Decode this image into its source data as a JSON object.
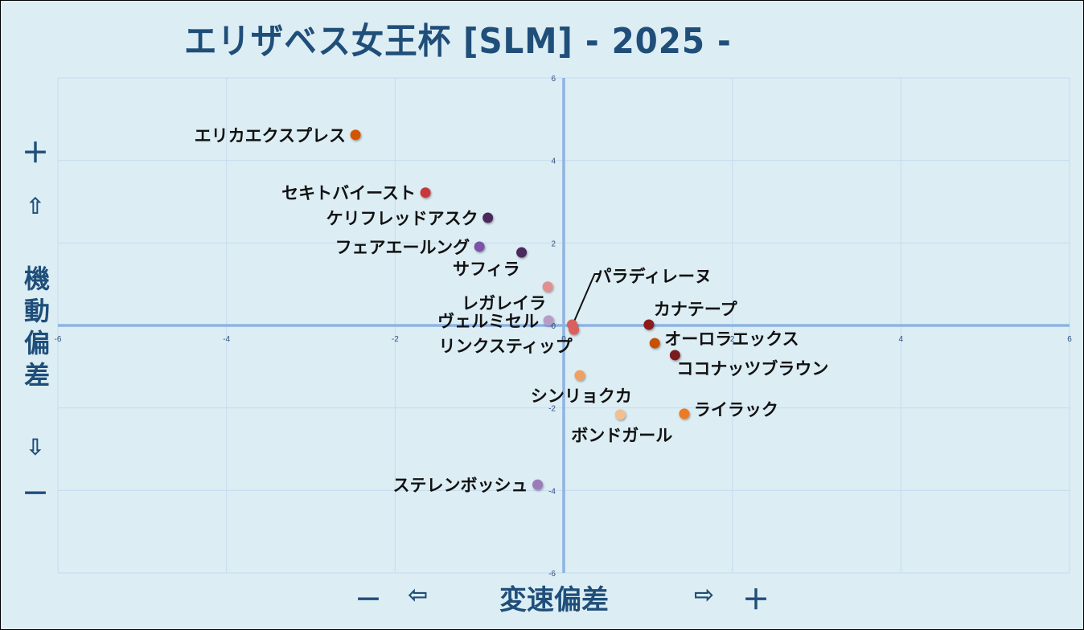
{
  "title": "エリザベス女王杯 [SLM]  - 2025 -",
  "y_axis": {
    "plus": "＋",
    "up_arrow": "⇧",
    "label_chars": [
      "機",
      "動",
      "偏",
      "差"
    ],
    "down_arrow": "⇩",
    "minus": "－"
  },
  "x_axis": {
    "minus": "－",
    "left_arrow": "⇦",
    "label": "変速偏差",
    "right_arrow": "⇨",
    "plus": "＋"
  },
  "colors": {
    "background": "#dcedf4",
    "title": "#1f4e79",
    "axis_line": "#8db3e2",
    "grid": "#c6dcef"
  },
  "chart_data": {
    "type": "scatter",
    "title": "エリザベス女王杯 [SLM]  - 2025 -",
    "xlabel": "変速偏差",
    "ylabel": "機動偏差",
    "xlim": [
      -6,
      6
    ],
    "ylim": [
      -6,
      6
    ],
    "x_ticks": [
      "-6",
      "-4",
      "-2",
      "0",
      "2",
      "4",
      "6"
    ],
    "y_ticks": [
      "6",
      "4",
      "2",
      "0",
      "-2",
      "-4",
      "-6"
    ],
    "grid": true,
    "legend": "none",
    "points": [
      {
        "name": "エリカエクスプレス",
        "x": -2.47,
        "y": 4.62,
        "color": "#d45500",
        "label_pos": "left"
      },
      {
        "name": "セキトバイースト",
        "x": -1.64,
        "y": 3.22,
        "color": "#c8373a",
        "label_pos": "left"
      },
      {
        "name": "ケリフレッドアスク",
        "x": -0.9,
        "y": 2.61,
        "color": "#4a2a5a",
        "label_pos": "left"
      },
      {
        "name": "フェアエールング",
        "x": -1.0,
        "y": 1.91,
        "color": "#7b52a6",
        "label_pos": "left"
      },
      {
        "name": "サフィラ",
        "x": -0.5,
        "y": 1.77,
        "color": "#4a2a5a",
        "label_pos": "below-left"
      },
      {
        "name": "レガレイラ",
        "x": -0.19,
        "y": 0.94,
        "color": "#e0908e",
        "label_pos": "below-left"
      },
      {
        "name": "ヴェルミセル",
        "x": -0.18,
        "y": 0.12,
        "color": "#b89cc8",
        "label_pos": "left"
      },
      {
        "name": "パラディレーヌ",
        "x": 0.1,
        "y": 0.02,
        "color": "#d9605c",
        "label_pos": "leader-up-right"
      },
      {
        "name": "リンクスティップ",
        "x": 0.12,
        "y": -0.1,
        "color": "#d9605c",
        "label_pos": "below-left"
      },
      {
        "name": "カナテープ",
        "x": 1.01,
        "y": 0.02,
        "color": "#8b1a1a",
        "label_pos": "above-right"
      },
      {
        "name": "オーロラエックス",
        "x": 1.08,
        "y": -0.43,
        "color": "#c85000",
        "label_pos": "right"
      },
      {
        "name": "ココナッツブラウン",
        "x": 1.32,
        "y": -0.72,
        "color": "#7a1c1c",
        "label_pos": "below-right"
      },
      {
        "name": "シンリョクカ",
        "x": 0.19,
        "y": -1.21,
        "color": "#f0a060",
        "label_pos": "below"
      },
      {
        "name": "ボンドガール",
        "x": 0.67,
        "y": -2.16,
        "color": "#f2c090",
        "label_pos": "below"
      },
      {
        "name": "ライラック",
        "x": 1.43,
        "y": -2.14,
        "color": "#ee7a20",
        "label_pos": "right"
      },
      {
        "name": "ステレンボッシュ",
        "x": -0.31,
        "y": -3.86,
        "color": "#9b7bb8",
        "label_pos": "left"
      }
    ]
  }
}
